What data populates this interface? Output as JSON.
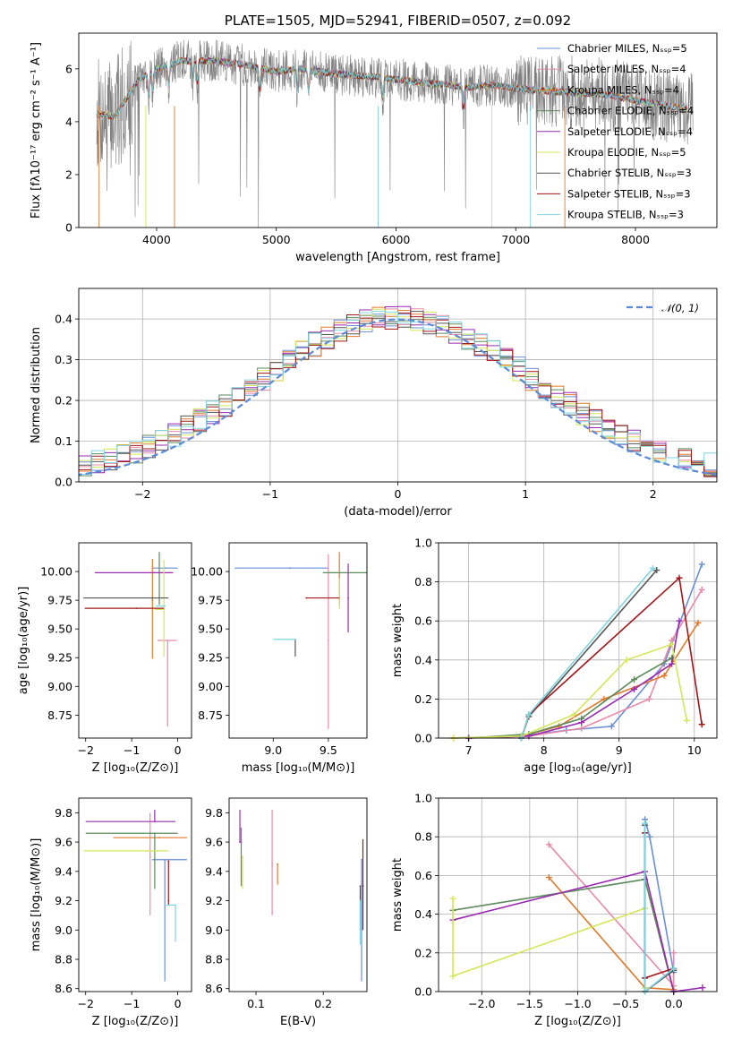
{
  "colors": [
    "#6a8fd8",
    "#e88aa8",
    "#e07a2a",
    "#5b8a5b",
    "#9a2bb0",
    "#d4e65a",
    "#555555",
    "#a0161a",
    "#7fd6e0"
  ],
  "chart_data": [
    {
      "id": "spectrum",
      "type": "line",
      "title": "PLATE=1505, MJD=52941, FIBERID=0507, z=0.092",
      "xlabel": "wavelength [Angstrom, rest frame]",
      "ylabel": "Flux [fλ10⁻¹⁷ erg cm⁻² s⁻¹ A⁻¹]",
      "xlim": [
        3350,
        8680
      ],
      "ylim": [
        0,
        7.35
      ],
      "xticks": [
        4000,
        5000,
        6000,
        7000,
        8000
      ],
      "yticks": [
        0,
        2,
        4,
        6
      ],
      "data_color": "#808080",
      "continuum": [
        [
          3500,
          4.3
        ],
        [
          3650,
          4.2
        ],
        [
          3750,
          4.9
        ],
        [
          3850,
          5.6
        ],
        [
          4000,
          6.0
        ],
        [
          4200,
          6.3
        ],
        [
          4500,
          6.3
        ],
        [
          4800,
          6.1
        ],
        [
          5000,
          5.9
        ],
        [
          5200,
          6.0
        ],
        [
          5500,
          5.8
        ],
        [
          5800,
          5.7
        ],
        [
          6000,
          5.6
        ],
        [
          6300,
          5.45
        ],
        [
          6600,
          5.3
        ],
        [
          6800,
          5.4
        ],
        [
          7000,
          5.25
        ],
        [
          7300,
          5.15
        ],
        [
          7500,
          5.1
        ],
        [
          7800,
          5.0
        ],
        [
          8000,
          4.8
        ],
        [
          8200,
          4.65
        ],
        [
          8400,
          4.5
        ]
      ],
      "legend": [
        "Chabrier MILES, Nₛₛₚ=5",
        "Salpeter MILES, Nₛₛₚ=4",
        "Kroupa MILES, Nₛₛₚ=4",
        "Chabrier ELODIE, Nₛₛₚ=4",
        "Salpeter ELODIE, Nₛₛₚ=4",
        "Kroupa ELODIE, Nₛₛₚ=5",
        "Chabrier STELIB, Nₛₛₚ=3",
        "Salpeter STELIB, Nₛₛₚ=3",
        "Kroupa STELIB, Nₛₛₚ=3"
      ],
      "legend_loc": "upper right"
    },
    {
      "id": "residuals",
      "type": "histogram",
      "xlabel": "(data-model)/error",
      "ylabel": "Normed distribution",
      "xlim": [
        -2.5,
        2.5
      ],
      "ylim": [
        0,
        0.475
      ],
      "xticks": [
        -2,
        -1,
        0,
        1,
        2
      ],
      "yticks": [
        0.0,
        0.1,
        0.2,
        0.3,
        0.4
      ],
      "bin_width": 0.1,
      "legend": [
        "𝒩(0, 1)"
      ],
      "legend_loc": "upper right",
      "grid": true
    },
    {
      "id": "age-vs-Z",
      "type": "errorbar",
      "xlabel": "Z [log₁₀(Z/Z⊙)]",
      "ylabel": "age  [log₁₀(age/yr)]",
      "xlim": [
        -2.15,
        0.3
      ],
      "ylim": [
        8.55,
        10.25
      ],
      "xticks": [
        -2,
        -1,
        0
      ],
      "yticks": [
        8.75,
        9.0,
        9.25,
        9.5,
        9.75,
        10.0
      ],
      "points": [
        {
          "x": -0.28,
          "xerr": [
            0.28,
            0.28
          ],
          "y": 10.03,
          "yerr": [
            0.0,
            0.0
          ]
        },
        {
          "x": -0.22,
          "xerr": [
            0.22,
            0.2
          ],
          "y": 9.4,
          "yerr": [
            0.75,
            0.0
          ]
        },
        {
          "x": -0.55,
          "xerr": [
            0.0,
            0.0
          ],
          "y": 9.75,
          "yerr": [
            0.51,
            0.36
          ]
        },
        {
          "x": -0.4,
          "xerr": [
            0.0,
            0.0
          ],
          "y": 9.99,
          "yerr": [
            0.28,
            0.18
          ]
        },
        {
          "x": -0.5,
          "xerr": [
            1.3,
            0.4
          ],
          "y": 9.99,
          "yerr": [
            0.0,
            0.0
          ]
        },
        {
          "x": -0.3,
          "xerr": [
            0.2,
            0.0
          ],
          "y": 9.67,
          "yerr": [
            0.41,
            0.43
          ]
        },
        {
          "x": -0.55,
          "xerr": [
            1.5,
            0.35
          ],
          "y": 9.77,
          "yerr": [
            0.0,
            0.0
          ]
        },
        {
          "x": -0.9,
          "xerr": [
            1.12,
            0.6
          ],
          "y": 9.68,
          "yerr": [
            0.0,
            0.0
          ]
        },
        {
          "x": -0.28,
          "xerr": [
            0.2,
            0.0
          ],
          "y": 9.7,
          "yerr": [
            0.0,
            0.0
          ]
        }
      ]
    },
    {
      "id": "age-vs-mass",
      "type": "errorbar",
      "xlabel": "mass [log₁₀(M/M⊙)]",
      "xlim": [
        8.6,
        9.85
      ],
      "ylim": [
        8.55,
        10.25
      ],
      "xticks": [
        9.0,
        9.5
      ],
      "yticks": [
        8.75,
        9.0,
        9.25,
        9.5,
        9.75,
        10.0
      ],
      "points": [
        {
          "x": 9.15,
          "xerr": [
            0.5,
            0.35
          ],
          "y": 10.03,
          "yerr": [
            0.0,
            0.0
          ]
        },
        {
          "x": 9.5,
          "xerr": [
            0.0,
            0.0
          ],
          "y": 9.4,
          "yerr": [
            0.77,
            0.75
          ]
        },
        {
          "x": 9.6,
          "xerr": [
            0.0,
            0.0
          ],
          "y": 9.99,
          "yerr": [
            0.28,
            0.18
          ]
        },
        {
          "x": 9.55,
          "xerr": [
            0.1,
            0.3
          ],
          "y": 9.99,
          "yerr": [
            0.0,
            0.0
          ]
        },
        {
          "x": 9.68,
          "xerr": [
            0.0,
            0.0
          ],
          "y": 9.77,
          "yerr": [
            0.3,
            0.3
          ]
        },
        {
          "x": 9.6,
          "xerr": [
            0.0,
            0.0
          ],
          "y": 9.72,
          "yerr": [
            0.05,
            0.22
          ]
        },
        {
          "x": 9.2,
          "xerr": [
            0.0,
            0.0
          ],
          "y": 9.41,
          "yerr": [
            0.15,
            0.0
          ]
        },
        {
          "x": 9.3,
          "xerr": [
            0.0,
            0.3
          ],
          "y": 9.77,
          "yerr": [
            0.0,
            0.0
          ]
        },
        {
          "x": 9.2,
          "xerr": [
            0.2,
            0.0
          ],
          "y": 9.41,
          "yerr": [
            0.0,
            0.0
          ]
        }
      ]
    },
    {
      "id": "weight-vs-age",
      "type": "line",
      "xlabel": "age  [log₁₀(age/yr)]",
      "ylabel": "mass weight",
      "xlim": [
        6.6,
        10.3
      ],
      "ylim": [
        0,
        1.0
      ],
      "xticks": [
        7,
        8,
        9,
        10
      ],
      "yticks": [
        0.0,
        0.2,
        0.4,
        0.6,
        0.8,
        1.0
      ],
      "grid": true,
      "series": [
        {
          "x": [
            6.8,
            7.7,
            8.3,
            8.9,
            9.6,
            10.1
          ],
          "y": [
            0.0,
            0.01,
            0.04,
            0.06,
            0.38,
            0.89
          ]
        },
        {
          "x": [
            7.0,
            7.8,
            8.5,
            9.4,
            9.7,
            10.1
          ],
          "y": [
            0.0,
            0.01,
            0.05,
            0.2,
            0.5,
            0.76
          ]
        },
        {
          "x": [
            6.8,
            7.7,
            8.2,
            8.8,
            9.6,
            10.05
          ],
          "y": [
            0.0,
            0.01,
            0.06,
            0.2,
            0.32,
            0.59
          ]
        },
        {
          "x": [
            7.0,
            7.8,
            8.5,
            9.2,
            9.7
          ],
          "y": [
            0.0,
            0.02,
            0.1,
            0.3,
            0.41
          ]
        },
        {
          "x": [
            7.0,
            7.8,
            8.5,
            9.2,
            9.7,
            9.8
          ],
          "y": [
            0.0,
            0.01,
            0.08,
            0.25,
            0.38,
            0.6
          ]
        },
        {
          "x": [
            6.8,
            7.7,
            8.4,
            9.1,
            9.7,
            9.9
          ],
          "y": [
            0.0,
            0.01,
            0.12,
            0.4,
            0.48,
            0.09
          ]
        },
        {
          "x": [
            7.7,
            7.8,
            9.5
          ],
          "y": [
            0.0,
            0.11,
            0.86
          ]
        },
        {
          "x": [
            7.7,
            7.8,
            9.8,
            10.1
          ],
          "y": [
            0.0,
            0.12,
            0.82,
            0.07
          ]
        },
        {
          "x": [
            7.7,
            7.8,
            9.45
          ],
          "y": [
            0.0,
            0.12,
            0.87
          ]
        }
      ]
    },
    {
      "id": "mass-vs-Z",
      "type": "errorbar",
      "xlabel": "Z [log₁₀(Z/Z⊙)]",
      "ylabel": "mass [log₁₀(M/M⊙)]",
      "xlim": [
        -2.15,
        0.3
      ],
      "ylim": [
        8.58,
        9.9
      ],
      "xticks": [
        -2,
        -1,
        0
      ],
      "yticks": [
        8.6,
        8.8,
        9.0,
        9.2,
        9.4,
        9.6,
        9.8
      ],
      "points": [
        {
          "x": -0.28,
          "xerr": [
            0.28,
            0.48
          ],
          "y": 9.48,
          "yerr": [
            0.83,
            0.0
          ]
        },
        {
          "x": -0.6,
          "xerr": [
            0.0,
            0.0
          ],
          "y": 9.5,
          "yerr": [
            0.4,
            0.3
          ]
        },
        {
          "x": -0.4,
          "xerr": [
            1.0,
            0.6
          ],
          "y": 9.63,
          "yerr": [
            0.0,
            0.0
          ]
        },
        {
          "x": -0.5,
          "xerr": [
            1.5,
            0.5
          ],
          "y": 9.66,
          "yerr": [
            0.38,
            0.0
          ]
        },
        {
          "x": -0.5,
          "xerr": [
            1.5,
            0.45
          ],
          "y": 9.74,
          "yerr": [
            0.0,
            0.08
          ]
        },
        {
          "x": -0.6,
          "xerr": [
            1.45,
            0.4
          ],
          "y": 9.54,
          "yerr": [
            0.0,
            0.0
          ]
        },
        {
          "x": -0.2,
          "xerr": [
            0.0,
            0.0
          ],
          "y": 9.2,
          "yerr": [
            0.0,
            0.0
          ]
        },
        {
          "x": -0.2,
          "xerr": [
            0.0,
            0.0
          ],
          "y": 9.47,
          "yerr": [
            0.3,
            0.0
          ]
        },
        {
          "x": -0.05,
          "xerr": [
            0.2,
            0.0
          ],
          "y": 9.17,
          "yerr": [
            0.25,
            0.0
          ]
        }
      ]
    },
    {
      "id": "mass-vs-EBV",
      "type": "errorbar",
      "xlabel": "E(B-V)",
      "xlim": [
        0.06,
        0.265
      ],
      "ylim": [
        8.58,
        9.9
      ],
      "xticks": [
        0.1,
        0.2
      ],
      "yticks": [
        8.6,
        8.8,
        9.0,
        9.2,
        9.4,
        9.6,
        9.8
      ],
      "points": [
        {
          "x": 0.257,
          "xerr": [
            0.0,
            0.0
          ],
          "y": 9.48,
          "yerr": [
            0.83,
            0.0
          ]
        },
        {
          "x": 0.124,
          "xerr": [
            0.0,
            0.0
          ],
          "y": 9.45,
          "yerr": [
            0.35,
            0.37
          ]
        },
        {
          "x": 0.132,
          "xerr": [
            0.0,
            0.0
          ],
          "y": 9.45,
          "yerr": [
            0.14,
            0.0
          ]
        },
        {
          "x": 0.078,
          "xerr": [
            0.0,
            0.0
          ],
          "y": 9.6,
          "yerr": [
            0.3,
            0.1
          ]
        },
        {
          "x": 0.076,
          "xerr": [
            0.0,
            0.0
          ],
          "y": 9.6,
          "yerr": [
            0.0,
            0.22
          ]
        },
        {
          "x": 0.08,
          "xerr": [
            0.0,
            0.0
          ],
          "y": 9.5,
          "yerr": [
            0.22,
            0.0
          ]
        },
        {
          "x": 0.255,
          "xerr": [
            0.0,
            0.0
          ],
          "y": 9.3,
          "yerr": [
            0.3,
            0.0
          ]
        },
        {
          "x": 0.259,
          "xerr": [
            0.0,
            0.0
          ],
          "y": 9.3,
          "yerr": [
            0.3,
            0.32
          ]
        },
        {
          "x": 0.255,
          "xerr": [
            0.0,
            0.0
          ],
          "y": 9.2,
          "yerr": [
            0.3,
            0.0
          ]
        }
      ]
    },
    {
      "id": "weight-vs-Z",
      "type": "line",
      "xlabel": "Z [log₁₀(Z/Z⊙)]",
      "ylabel": "mass weight",
      "xlim": [
        -2.45,
        0.45
      ],
      "ylim": [
        0,
        1.0
      ],
      "xticks": [
        -2.0,
        -1.5,
        -1.0,
        -0.5,
        0.0
      ],
      "yticks": [
        0.0,
        0.2,
        0.4,
        0.6,
        0.8,
        1.0
      ],
      "grid": true,
      "series": [
        {
          "x": [
            -0.3,
            -0.25,
            0.0,
            0.0
          ],
          "y": [
            0.89,
            0.8,
            0.1,
            0.0
          ]
        },
        {
          "x": [
            -1.3,
            0.0,
            0.0
          ],
          "y": [
            0.76,
            0.03,
            0.2
          ]
        },
        {
          "x": [
            -1.3,
            -0.3,
            0.0
          ],
          "y": [
            0.59,
            0.02,
            0.01
          ]
        },
        {
          "x": [
            -2.3,
            -0.3,
            0.0
          ],
          "y": [
            0.42,
            0.58,
            0.0
          ]
        },
        {
          "x": [
            -2.3,
            -0.3,
            0.0,
            0.3
          ],
          "y": [
            0.37,
            0.62,
            0.0,
            0.02
          ]
        },
        {
          "x": [
            -2.3,
            -2.3,
            -0.3,
            -0.3
          ],
          "y": [
            0.48,
            0.08,
            0.43,
            0.02
          ]
        },
        {
          "x": [
            -0.3,
            -0.3,
            0.0
          ],
          "y": [
            0.86,
            0.0,
            0.11
          ]
        },
        {
          "x": [
            -0.3,
            -0.3,
            0.0
          ],
          "y": [
            0.82,
            0.07,
            0.12
          ]
        },
        {
          "x": [
            -0.3,
            -0.3,
            0.0
          ],
          "y": [
            0.87,
            0.0,
            0.12
          ]
        }
      ]
    }
  ]
}
